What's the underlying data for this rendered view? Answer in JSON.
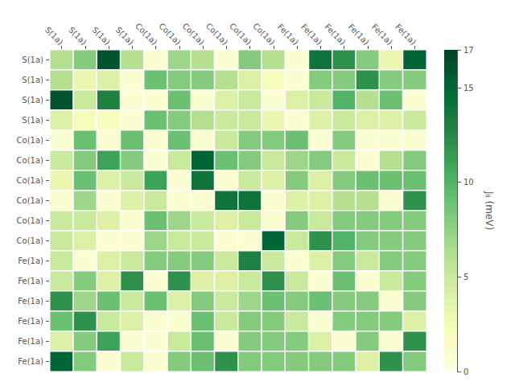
{
  "chart_data": {
    "type": "heatmap",
    "categories": [
      "S(1a)",
      "S(1a)",
      "S(1a)",
      "S(1a)",
      "Co(1a)",
      "Co(1a)",
      "Co(1a)",
      "Co(1a)",
      "Co(1a)",
      "Co(1a)",
      "Fe(1a)",
      "Fe(1a)",
      "Fe(1a)",
      "Fe(1a)",
      "Fe(1a)",
      "Fe(1a)"
    ],
    "rows": [
      "S(1a)",
      "S(1a)",
      "S(1a)",
      "S(1a)",
      "Co(1a)",
      "Co(1a)",
      "Co(1a)",
      "Co(1a)",
      "Co(1a)",
      "Co(1a)",
      "Fe(1a)",
      "Fe(1a)",
      "Fe(1a)",
      "Fe(1a)",
      "Fe(1a)",
      "Fe(1a)"
    ],
    "values": [
      [
        6,
        8,
        16,
        6,
        1,
        7,
        6,
        1,
        8,
        6,
        1,
        14,
        12,
        8,
        3,
        15
      ],
      [
        6,
        3,
        4,
        1,
        9,
        8,
        8,
        6,
        4,
        2,
        1,
        8,
        8,
        12,
        8,
        8
      ],
      [
        16,
        5,
        13,
        1,
        1,
        9,
        1,
        4,
        5,
        1,
        4,
        5,
        10,
        6,
        9,
        1
      ],
      [
        4,
        2,
        2,
        1,
        9,
        8,
        6,
        5,
        5,
        3,
        1,
        4,
        5,
        4,
        4,
        5
      ],
      [
        1,
        9,
        1,
        9,
        1,
        9,
        1,
        5,
        8,
        8,
        9,
        1,
        8,
        1,
        1,
        1
      ],
      [
        5,
        8,
        11,
        8,
        1,
        5,
        15,
        9,
        8,
        5,
        7,
        8,
        5,
        1,
        6,
        8
      ],
      [
        3,
        9,
        4,
        5,
        11,
        1,
        14,
        1,
        5,
        4,
        8,
        4,
        8,
        9,
        9,
        9
      ],
      [
        1,
        7,
        1,
        4,
        5,
        1,
        1,
        14,
        14,
        1,
        4,
        4,
        6,
        6,
        1,
        12
      ],
      [
        5,
        5,
        4,
        1,
        9,
        7,
        5,
        4,
        5,
        1,
        8,
        5,
        8,
        8,
        8,
        8
      ],
      [
        5,
        4,
        1,
        1,
        7,
        5,
        5,
        1,
        1,
        15,
        5,
        12,
        10,
        8,
        8,
        8
      ],
      [
        5,
        1,
        4,
        5,
        8,
        8,
        8,
        5,
        13,
        5,
        1,
        4,
        8,
        5,
        8,
        8
      ],
      [
        5,
        8,
        4,
        12,
        1,
        12,
        4,
        4,
        5,
        12,
        5,
        1,
        9,
        1,
        5,
        8
      ],
      [
        12,
        7,
        9,
        5,
        9,
        4,
        8,
        5,
        7,
        9,
        8,
        9,
        8,
        8,
        1,
        8
      ],
      [
        9,
        12,
        5,
        4,
        1,
        1,
        9,
        5,
        8,
        8,
        5,
        1,
        8,
        8,
        8,
        4
      ],
      [
        4,
        8,
        11,
        1,
        1,
        5,
        9,
        1,
        8,
        8,
        8,
        4,
        1,
        8,
        1,
        12
      ],
      [
        15,
        8,
        1,
        5,
        1,
        8,
        9,
        12,
        8,
        8,
        8,
        8,
        8,
        4,
        12,
        8
      ]
    ],
    "colorbar_label": "Jᵢⱼ (meV)",
    "colorbar_lim": [
      0,
      17
    ],
    "colorbar_ticks": [
      0,
      5,
      10,
      15
    ]
  }
}
